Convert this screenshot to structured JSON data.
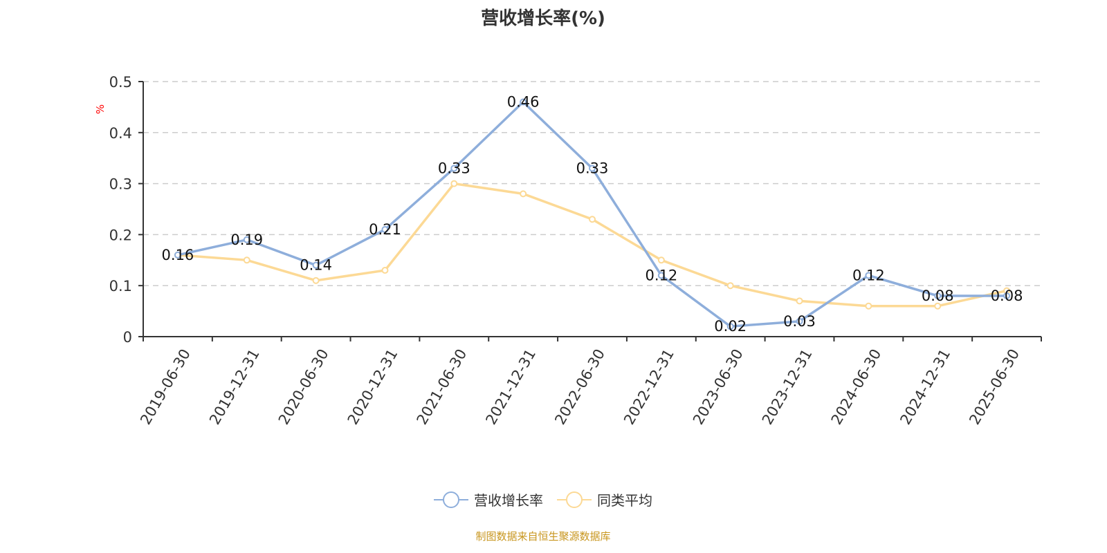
{
  "chart_data": {
    "type": "line",
    "title": "营收增长率(%)",
    "ylabel": "%",
    "xlabel": "",
    "ylim": [
      0,
      0.5
    ],
    "yticks": [
      "0",
      "0.1",
      "0.2",
      "0.3",
      "0.4",
      "0.5"
    ],
    "grid": true,
    "legend_position": "bottom",
    "categories": [
      "2019-06-30",
      "2019-12-31",
      "2020-06-30",
      "2020-12-31",
      "2021-06-30",
      "2021-12-31",
      "2022-06-30",
      "2022-12-31",
      "2023-06-30",
      "2023-12-31",
      "2024-06-30",
      "2024-12-31",
      "2025-06-30"
    ],
    "series": [
      {
        "name": "营收增长率",
        "color": "#8eaedb",
        "labels": true,
        "values": [
          0.16,
          0.19,
          0.14,
          0.21,
          0.33,
          0.46,
          0.33,
          0.12,
          0.02,
          0.03,
          0.12,
          0.08,
          0.08
        ]
      },
      {
        "name": "同类平均",
        "color": "#fcd995",
        "labels": false,
        "values": [
          0.16,
          0.15,
          0.11,
          0.13,
          0.3,
          0.28,
          0.23,
          0.15,
          0.1,
          0.07,
          0.06,
          0.06,
          0.09
        ]
      }
    ]
  },
  "source": "制图数据来自恒生聚源数据库"
}
